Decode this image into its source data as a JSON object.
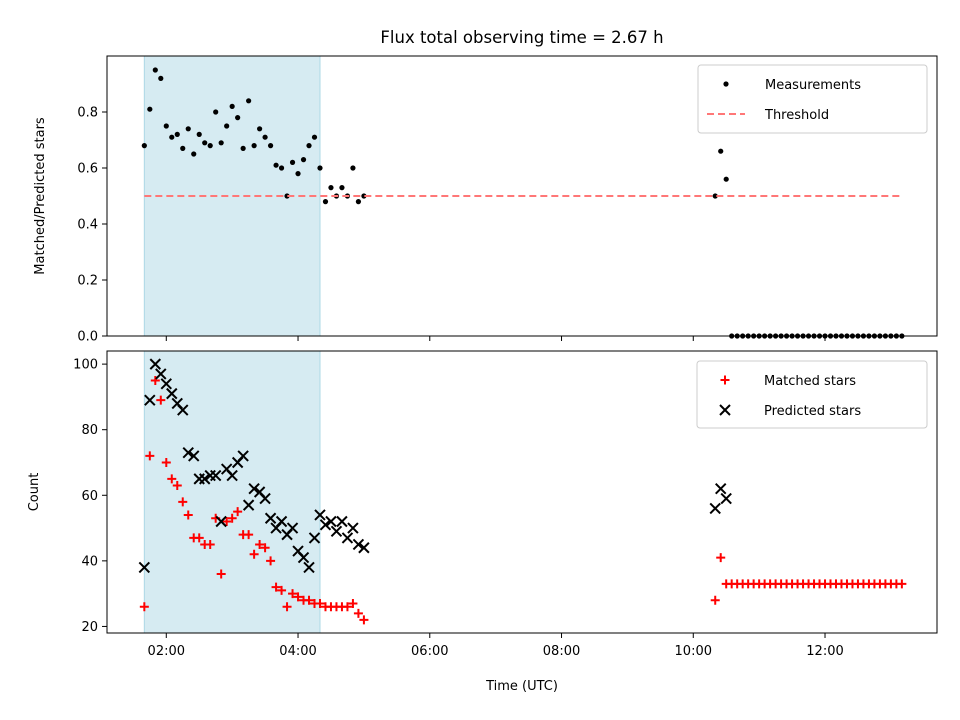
{
  "figure": {
    "title": "Flux total observing time = 2.67 h",
    "xlabel": "Time (UTC)",
    "shade_color": "#add8e6",
    "shade_opacity": 0.5,
    "shade_range": [
      "01:40",
      "04:20"
    ],
    "xlim": [
      "01:06",
      "13:42"
    ],
    "x_ticks": [
      "02:00",
      "04:00",
      "06:00",
      "08:00",
      "10:00",
      "12:00"
    ]
  },
  "chart_data": [
    {
      "type": "scatter",
      "ylabel": "Matched/Predicted stars",
      "ylim": [
        0,
        1.0
      ],
      "y_ticks": [
        0.0,
        0.2,
        0.4,
        0.6,
        0.8
      ],
      "y_tick_labels": [
        "0.0",
        "0.2",
        "0.4",
        "0.6",
        "0.8"
      ],
      "legend_position": "top-right",
      "series": [
        {
          "name": "Measurements",
          "kind": "dots",
          "color": "#000000",
          "x": [
            "01:40",
            "01:45",
            "01:50",
            "01:55",
            "02:00",
            "02:05",
            "02:10",
            "02:15",
            "02:20",
            "02:25",
            "02:30",
            "02:35",
            "02:40",
            "02:45",
            "02:50",
            "02:55",
            "03:00",
            "03:05",
            "03:10",
            "03:15",
            "03:20",
            "03:25",
            "03:30",
            "03:35",
            "03:40",
            "03:45",
            "03:50",
            "03:55",
            "04:00",
            "04:05",
            "04:10",
            "04:15",
            "04:20",
            "04:25",
            "04:30",
            "04:35",
            "04:40",
            "04:45",
            "04:50",
            "04:55",
            "05:00",
            "10:20",
            "10:25",
            "10:30",
            "10:35",
            "10:40",
            "10:45",
            "10:50",
            "10:55",
            "11:00",
            "11:05",
            "11:10",
            "11:15",
            "11:20",
            "11:25",
            "11:30",
            "11:35",
            "11:40",
            "11:45",
            "11:50",
            "11:55",
            "12:00",
            "12:05",
            "12:10",
            "12:15",
            "12:20",
            "12:25",
            "12:30",
            "12:35",
            "12:40",
            "12:45",
            "12:50",
            "12:55",
            "13:00",
            "13:05",
            "13:10"
          ],
          "y": [
            0.68,
            0.81,
            0.95,
            0.92,
            0.75,
            0.71,
            0.72,
            0.67,
            0.74,
            0.65,
            0.72,
            0.69,
            0.68,
            0.8,
            0.69,
            0.75,
            0.82,
            0.78,
            0.67,
            0.84,
            0.68,
            0.74,
            0.71,
            0.68,
            0.61,
            0.6,
            0.5,
            0.62,
            0.58,
            0.63,
            0.68,
            0.71,
            0.6,
            0.48,
            0.53,
            0.5,
            0.53,
            0.5,
            0.6,
            0.48,
            0.5,
            0.5,
            0.66,
            0.56,
            0.0,
            0.0,
            0.0,
            0.0,
            0.0,
            0.0,
            0.0,
            0.0,
            0.0,
            0.0,
            0.0,
            0.0,
            0.0,
            0.0,
            0.0,
            0.0,
            0.0,
            0.0,
            0.0,
            0.0,
            0.0,
            0.0,
            0.0,
            0.0,
            0.0,
            0.0,
            0.0,
            0.0,
            0.0,
            0.0,
            0.0,
            0.0
          ]
        },
        {
          "name": "Threshold",
          "kind": "dashed-line",
          "color": "#ff7777",
          "x": [
            "01:40",
            "13:10"
          ],
          "y": [
            0.5,
            0.5
          ]
        }
      ]
    },
    {
      "type": "scatter",
      "ylabel": "Count",
      "ylim": [
        18,
        104
      ],
      "y_ticks": [
        20,
        40,
        60,
        80,
        100
      ],
      "y_tick_labels": [
        "20",
        "40",
        "60",
        "80",
        "100"
      ],
      "legend_position": "top-right",
      "series": [
        {
          "name": "Matched stars",
          "kind": "plus",
          "color": "#ff0000",
          "x": [
            "01:40",
            "01:45",
            "01:50",
            "01:55",
            "02:00",
            "02:05",
            "02:10",
            "02:15",
            "02:20",
            "02:25",
            "02:30",
            "02:35",
            "02:40",
            "02:45",
            "02:50",
            "02:55",
            "03:00",
            "03:05",
            "03:10",
            "03:15",
            "03:20",
            "03:25",
            "03:30",
            "03:35",
            "03:40",
            "03:45",
            "03:50",
            "03:55",
            "04:00",
            "04:05",
            "04:10",
            "04:15",
            "04:20",
            "04:25",
            "04:30",
            "04:35",
            "04:40",
            "04:45",
            "04:50",
            "04:55",
            "05:00",
            "10:20",
            "10:25",
            "10:30",
            "10:35",
            "10:40",
            "10:45",
            "10:50",
            "10:55",
            "11:00",
            "11:05",
            "11:10",
            "11:15",
            "11:20",
            "11:25",
            "11:30",
            "11:35",
            "11:40",
            "11:45",
            "11:50",
            "11:55",
            "12:00",
            "12:05",
            "12:10",
            "12:15",
            "12:20",
            "12:25",
            "12:30",
            "12:35",
            "12:40",
            "12:45",
            "12:50",
            "12:55",
            "13:00",
            "13:05",
            "13:10"
          ],
          "y": [
            26,
            72,
            95,
            89,
            70,
            65,
            63,
            58,
            54,
            47,
            47,
            45,
            45,
            53,
            36,
            52,
            53,
            55,
            48,
            48,
            42,
            45,
            44,
            40,
            32,
            31,
            26,
            30,
            29,
            28,
            28,
            27,
            27,
            26,
            26,
            26,
            26,
            26,
            27,
            24,
            22,
            28,
            41,
            33,
            33,
            33,
            33,
            33,
            33,
            33,
            33,
            33,
            33,
            33,
            33,
            33,
            33,
            33,
            33,
            33,
            33,
            33,
            33,
            33,
            33,
            33,
            33,
            33,
            33,
            33,
            33,
            33,
            33,
            33,
            33,
            33
          ]
        },
        {
          "name": "Predicted stars",
          "kind": "x",
          "color": "#000000",
          "x": [
            "01:40",
            "01:45",
            "01:50",
            "01:55",
            "02:00",
            "02:05",
            "02:10",
            "02:15",
            "02:20",
            "02:25",
            "02:30",
            "02:35",
            "02:40",
            "02:45",
            "02:50",
            "02:55",
            "03:00",
            "03:05",
            "03:10",
            "03:15",
            "03:20",
            "03:25",
            "03:30",
            "03:35",
            "03:40",
            "03:45",
            "03:50",
            "03:55",
            "04:00",
            "04:05",
            "04:10",
            "04:15",
            "04:20",
            "04:25",
            "04:30",
            "04:35",
            "04:40",
            "04:45",
            "04:50",
            "04:55",
            "05:00",
            "10:20",
            "10:25",
            "10:30"
          ],
          "y": [
            38,
            89,
            100,
            97,
            94,
            91,
            88,
            86,
            73,
            72,
            65,
            65,
            66,
            66,
            52,
            68,
            66,
            70,
            72,
            57,
            62,
            61,
            59,
            53,
            50,
            52,
            48,
            50,
            43,
            41,
            38,
            47,
            54,
            51,
            52,
            49,
            52,
            47,
            50,
            45,
            44,
            56,
            62,
            59
          ]
        }
      ]
    }
  ]
}
